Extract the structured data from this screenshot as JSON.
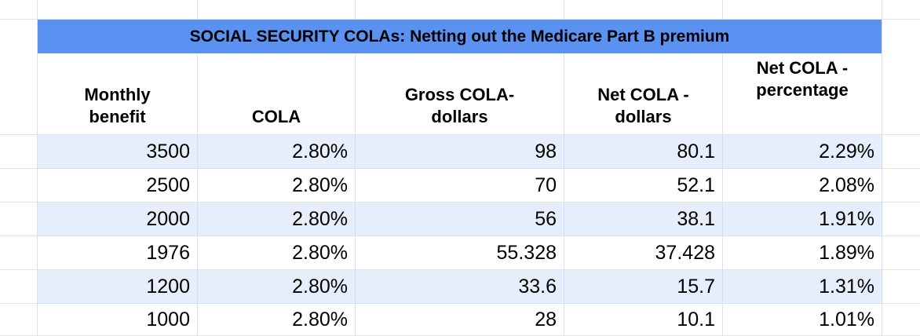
{
  "sheet": {
    "title": "SOCIAL SECURITY COLAs: Netting out the Medicare Part B premium",
    "headers": {
      "monthly_benefit": "Monthly\nbenefit",
      "cola": "COLA",
      "gross_cola_dollars": "Gross COLA-\ndollars",
      "net_cola_dollars": "Net COLA -\ndollars",
      "net_cola_percentage": "Net COLA -\npercentage"
    },
    "rows": [
      [
        "3500",
        "2.80%",
        "98",
        "80.1",
        "2.29%"
      ],
      [
        "2500",
        "2.80%",
        "70",
        "52.1",
        "2.08%"
      ],
      [
        "2000",
        "2.80%",
        "56",
        "38.1",
        "1.91%"
      ],
      [
        "1976",
        "2.80%",
        "55.328",
        "37.428",
        "1.89%"
      ],
      [
        "1200",
        "2.80%",
        "33.6",
        "15.7",
        "1.31%"
      ],
      [
        "1000",
        "2.80%",
        "28",
        "10.1",
        "1.01%"
      ]
    ],
    "colors": {
      "title_bg": "#5b92f2",
      "band_bg": "#e6eefb",
      "gridline": "#e2e2e2",
      "banded_gridline": "#d6dff2"
    }
  }
}
